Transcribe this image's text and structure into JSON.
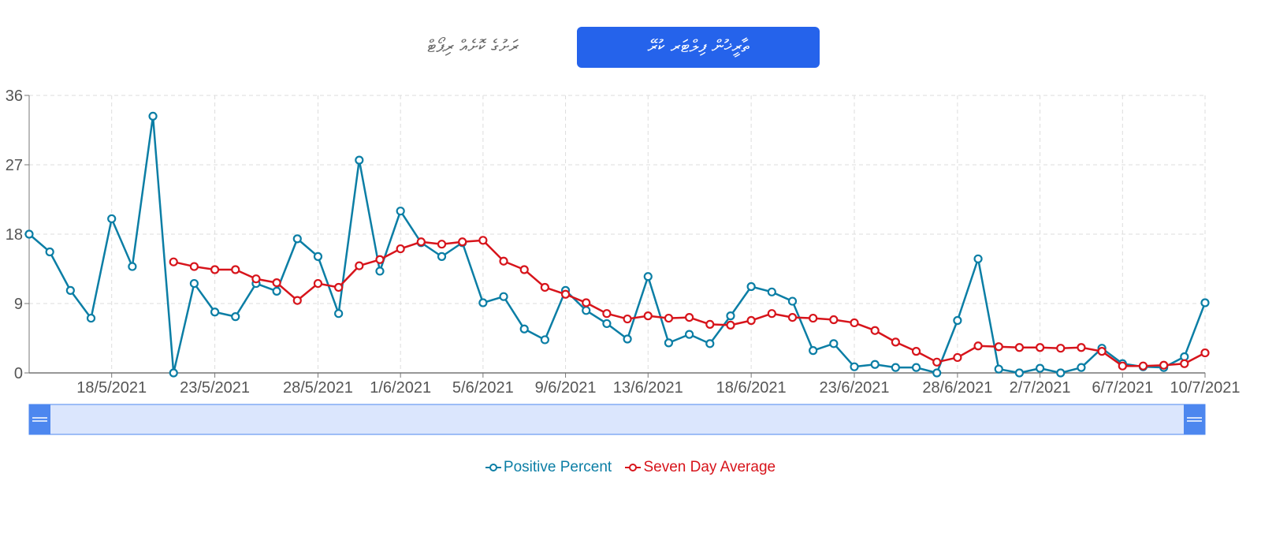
{
  "tabs": [
    {
      "label": "ތާރީޚުން ފިލްޓަރ ކުރޭ",
      "active": true
    },
    {
      "label": "ރަށުގެ ކޮށެއް ރިޕޯޓް",
      "active": false
    }
  ],
  "colors": {
    "positive": "#0b7ea5",
    "average": "#d7141b",
    "tab_active": "#2563eb",
    "navigator_fill": "#dbe6fd",
    "navigator_handle": "#4d87ef"
  },
  "chart_data": {
    "type": "line",
    "title": "",
    "xlabel": "",
    "ylabel": "",
    "ylim": [
      0,
      36
    ],
    "yticks": [
      0,
      9,
      18,
      27,
      36
    ],
    "grid": true,
    "legend": "bottom-center",
    "x_start": "14/5/2021",
    "x_end": "10/7/2021",
    "xticks": [
      "18/5/2021",
      "23/5/2021",
      "28/5/2021",
      "1/6/2021",
      "5/6/2021",
      "9/6/2021",
      "13/6/2021",
      "18/6/2021",
      "23/6/2021",
      "28/6/2021",
      "2/7/2021",
      "6/7/2021",
      "10/7/2021"
    ],
    "series": [
      {
        "name": "Positive Percent",
        "start": "14/5/2021",
        "values": [
          18.0,
          15.7,
          10.7,
          7.1,
          20.0,
          13.8,
          33.3,
          0.0,
          11.6,
          7.9,
          7.3,
          11.6,
          10.6,
          17.4,
          15.1,
          7.7,
          27.6,
          13.2,
          21.0,
          16.9,
          15.1,
          16.9,
          9.1,
          9.9,
          5.7,
          4.3,
          10.7,
          8.1,
          6.4,
          4.4,
          12.5,
          3.9,
          5.0,
          3.8,
          7.4,
          11.2,
          10.5,
          9.3,
          2.9,
          3.8,
          0.8,
          1.1,
          0.7,
          0.7,
          0.0,
          6.8,
          14.8,
          0.5,
          0.0,
          0.6,
          0.0,
          0.7,
          3.2,
          1.2,
          0.8,
          0.7,
          2.1,
          9.1
        ]
      },
      {
        "name": "Seven Day Average",
        "start": "21/5/2021",
        "values": [
          14.4,
          13.8,
          13.4,
          13.4,
          12.2,
          11.7,
          9.4,
          11.6,
          11.1,
          13.9,
          14.7,
          16.1,
          17.0,
          16.7,
          17.0,
          17.2,
          14.5,
          13.4,
          11.1,
          10.2,
          9.1,
          7.7,
          7.0,
          7.4,
          7.1,
          7.2,
          6.3,
          6.2,
          6.8,
          7.7,
          7.2,
          7.1,
          6.9,
          6.5,
          5.5,
          4.0,
          2.8,
          1.4,
          2.0,
          3.5,
          3.4,
          3.3,
          3.3,
          3.2,
          3.3,
          2.8,
          0.9,
          0.9,
          1.0,
          1.2,
          2.6
        ]
      }
    ]
  },
  "legend_items": [
    {
      "label": "Positive Percent"
    },
    {
      "label": "Seven Day Average"
    }
  ]
}
